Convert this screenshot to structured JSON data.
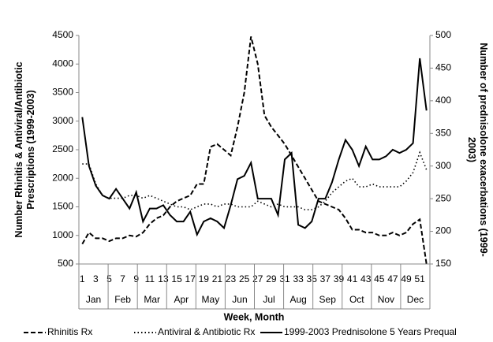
{
  "chart_data": {
    "type": "line",
    "ylabel": [
      "Number Rhinitis & Antiviral/Antibiotic",
      "Prescriptions (1999-2003)"
    ],
    "y2label": [
      "Number of prednisolone exacerbations (1999-",
      "2003)"
    ],
    "xlabel": "Week, Month",
    "categories": [
      1,
      null,
      3,
      null,
      5,
      null,
      7,
      null,
      9,
      null,
      11,
      null,
      13,
      null,
      15,
      null,
      17,
      null,
      19,
      null,
      21,
      null,
      23,
      null,
      25,
      null,
      27,
      null,
      29,
      null,
      31,
      null,
      33,
      null,
      35,
      null,
      37,
      null,
      39,
      null,
      41,
      null,
      43,
      null,
      45,
      null,
      47,
      null,
      49,
      null,
      51,
      null
    ],
    "months": [
      "Jan",
      "Feb",
      "Mar",
      "Apr",
      "May",
      "Jun",
      "Jul",
      "Aug",
      "Sep",
      "Oct",
      "Nov",
      "Dec"
    ],
    "ylim": [
      500,
      4500
    ],
    "yticks": [
      500,
      1000,
      1500,
      2000,
      2500,
      3000,
      3500,
      4000,
      4500
    ],
    "y2lim": [
      150,
      500
    ],
    "y2ticks": [
      150,
      200,
      250,
      300,
      350,
      400,
      450,
      500
    ],
    "grid": false,
    "series": [
      {
        "name": "Rhinitis Rx",
        "color": "#000000",
        "dash": "dashed",
        "values": [
          850,
          1050,
          950,
          950,
          900,
          950,
          950,
          1000,
          980,
          1050,
          1200,
          1300,
          1350,
          1500,
          1600,
          1650,
          1700,
          1900,
          1900,
          2550,
          2600,
          2500,
          2400,
          2900,
          3500,
          4480,
          4000,
          3100,
          2900,
          2750,
          2600,
          2400,
          2200,
          2000,
          1800,
          1600,
          1550,
          1500,
          1450,
          1300,
          1100,
          1100,
          1050,
          1050,
          1000,
          1000,
          1050,
          1000,
          1050,
          1200,
          1280,
          500
        ]
      },
      {
        "name": "Antiviral & Antibiotic Rx",
        "color": "#000000",
        "dash": "dotted",
        "values": [
          2250,
          2250,
          1900,
          1700,
          1650,
          1650,
          1650,
          1700,
          1700,
          1650,
          1700,
          1650,
          1600,
          1550,
          1500,
          1500,
          1450,
          1500,
          1550,
          1550,
          1500,
          1550,
          1550,
          1500,
          1500,
          1500,
          1600,
          1550,
          1500,
          1550,
          1500,
          1500,
          1500,
          1450,
          1450,
          1500,
          1600,
          1750,
          1850,
          1950,
          2000,
          1850,
          1850,
          1900,
          1850,
          1850,
          1850,
          1850,
          1950,
          2100,
          2450,
          2150
        ]
      },
      {
        "name": "1999-2003 Prednisolone 5 Years Prequal",
        "color": "#000000",
        "dash": "solid",
        "axis": "y2",
        "values": [
          375,
          300,
          270,
          255,
          250,
          265,
          250,
          235,
          260,
          215,
          235,
          235,
          240,
          225,
          215,
          215,
          230,
          195,
          215,
          220,
          215,
          205,
          240,
          280,
          285,
          305,
          250,
          250,
          250,
          225,
          310,
          320,
          210,
          205,
          215,
          250,
          250,
          275,
          310,
          340,
          325,
          300,
          330,
          310,
          310,
          315,
          325,
          320,
          325,
          335,
          465,
          385
        ]
      }
    ]
  }
}
